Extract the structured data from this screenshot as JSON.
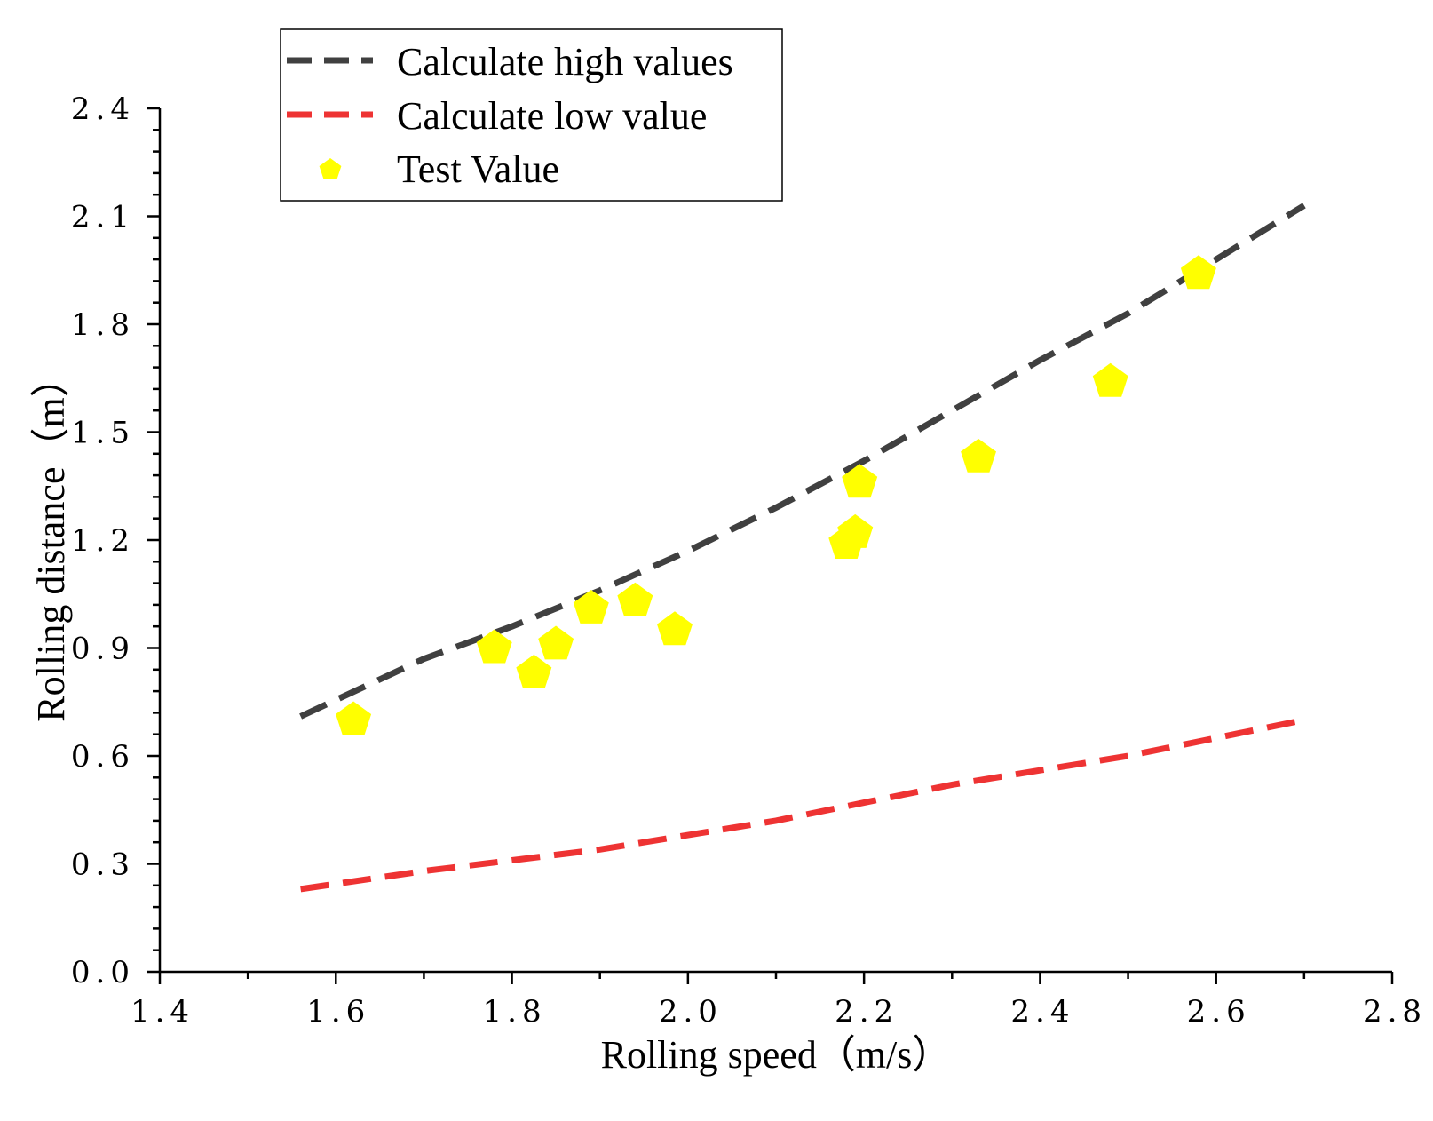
{
  "chart_data": {
    "type": "scatter",
    "title": "",
    "xlabel": "Rolling speed（m/s）",
    "ylabel": "Rolling distance（m）",
    "xlim": [
      1.4,
      2.8
    ],
    "ylim": [
      0.0,
      2.4
    ],
    "xticks": [
      1.4,
      1.6,
      1.8,
      2.0,
      2.2,
      2.4,
      2.6,
      2.8
    ],
    "yticks": [
      0.0,
      0.3,
      0.6,
      0.9,
      1.2,
      1.5,
      1.8,
      2.1,
      2.4
    ],
    "xtick_labels": [
      "1.4",
      "1.6",
      "1.8",
      "2.0",
      "2.2",
      "2.4",
      "2.6",
      "2.8"
    ],
    "ytick_labels": [
      "0.0",
      "0.3",
      "0.6",
      "0.9",
      "1.2",
      "1.5",
      "1.8",
      "2.1",
      "2.4"
    ],
    "legend_position": "top-left",
    "series": [
      {
        "name": "Calculate high values",
        "kind": "line",
        "style": "dashed",
        "color": "#404040",
        "x": [
          1.56,
          1.7,
          1.8,
          1.9,
          2.0,
          2.1,
          2.2,
          2.3,
          2.4,
          2.5,
          2.6,
          2.7
        ],
        "y": [
          0.71,
          0.87,
          0.96,
          1.06,
          1.17,
          1.29,
          1.42,
          1.56,
          1.7,
          1.83,
          1.98,
          2.13
        ]
      },
      {
        "name": "Calculate low value",
        "kind": "line",
        "style": "dashed",
        "color": "#ee3333",
        "x": [
          1.56,
          1.7,
          1.8,
          1.9,
          2.0,
          2.1,
          2.2,
          2.3,
          2.4,
          2.5,
          2.6,
          2.7
        ],
        "y": [
          0.23,
          0.28,
          0.31,
          0.34,
          0.38,
          0.42,
          0.47,
          0.52,
          0.56,
          0.6,
          0.65,
          0.7
        ]
      },
      {
        "name": "Test Value",
        "kind": "scatter",
        "marker": "pentagon",
        "color": "#ffff00",
        "x": [
          1.62,
          1.78,
          1.825,
          1.85,
          1.89,
          1.94,
          1.985,
          2.18,
          2.19,
          2.195,
          2.33,
          2.48,
          2.58
        ],
        "y": [
          0.7,
          0.9,
          0.83,
          0.91,
          1.01,
          1.03,
          0.95,
          1.19,
          1.22,
          1.36,
          1.43,
          1.64,
          1.94
        ]
      }
    ]
  }
}
